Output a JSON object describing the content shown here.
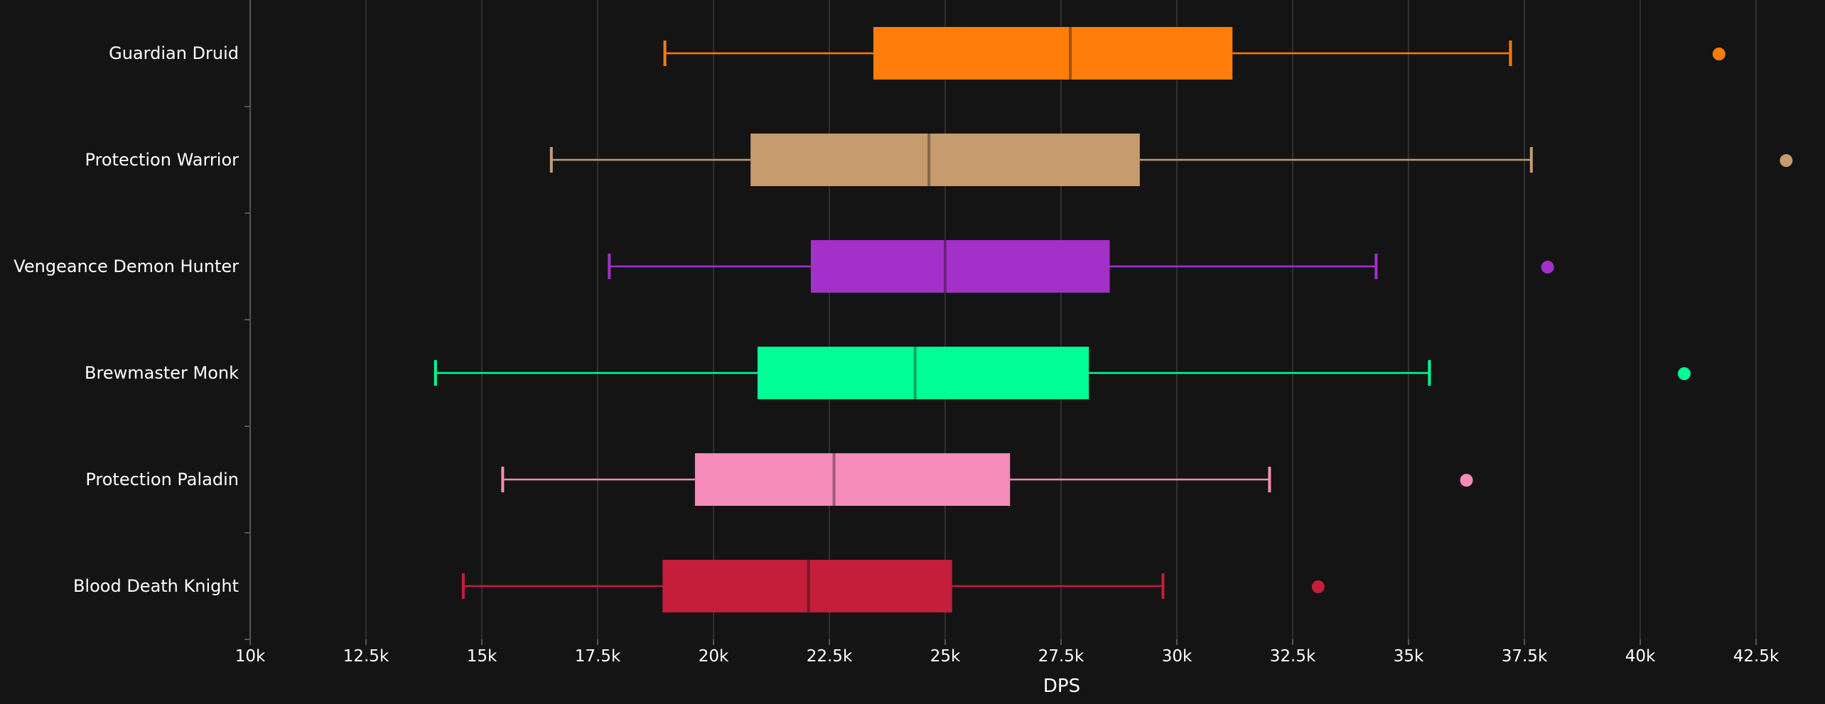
{
  "chart_data": {
    "type": "boxplot",
    "title": "",
    "xlabel": "DPS",
    "ylabel": "",
    "orientation": "horizontal",
    "grid": true,
    "xlim": [
      10000,
      43000
    ],
    "x_ticks": [
      10000,
      12500,
      15000,
      17500,
      20000,
      22500,
      25000,
      27500,
      30000,
      32500,
      35000,
      37500,
      40000,
      42500
    ],
    "x_tick_labels": [
      "10k",
      "12.5k",
      "15k",
      "17.5k",
      "20k",
      "22.5k",
      "25k",
      "27.5k",
      "30k",
      "32.5k",
      "35k",
      "37.5k",
      "40k",
      "42.5k"
    ],
    "series": [
      {
        "name": "Guardian Druid",
        "color": "#ff7d0a",
        "min": 18950,
        "q1": 23450,
        "median": 27700,
        "q3": 31200,
        "max": 37200,
        "outliers": [
          41700
        ]
      },
      {
        "name": "Protection Warrior",
        "color": "#c69b6d",
        "min": 16500,
        "q1": 20800,
        "median": 24650,
        "q3": 29200,
        "max": 37650,
        "outliers": [
          43150
        ]
      },
      {
        "name": "Vengeance Demon Hunter",
        "color": "#a330c9",
        "min": 17750,
        "q1": 22100,
        "median": 25000,
        "q3": 28550,
        "max": 34300,
        "outliers": [
          38000
        ]
      },
      {
        "name": "Brewmaster Monk",
        "color": "#00ff96",
        "min": 14000,
        "q1": 20950,
        "median": 24350,
        "q3": 28100,
        "max": 35450,
        "outliers": [
          40950
        ]
      },
      {
        "name": "Protection Paladin",
        "color": "#f58cba",
        "min": 15450,
        "q1": 19600,
        "median": 22600,
        "q3": 26400,
        "max": 32000,
        "outliers": [
          36250
        ]
      },
      {
        "name": "Blood Death Knight",
        "color": "#c41e3a",
        "min": 14600,
        "q1": 18900,
        "median": 22050,
        "q3": 25150,
        "max": 29700,
        "outliers": [
          33050
        ]
      }
    ]
  }
}
